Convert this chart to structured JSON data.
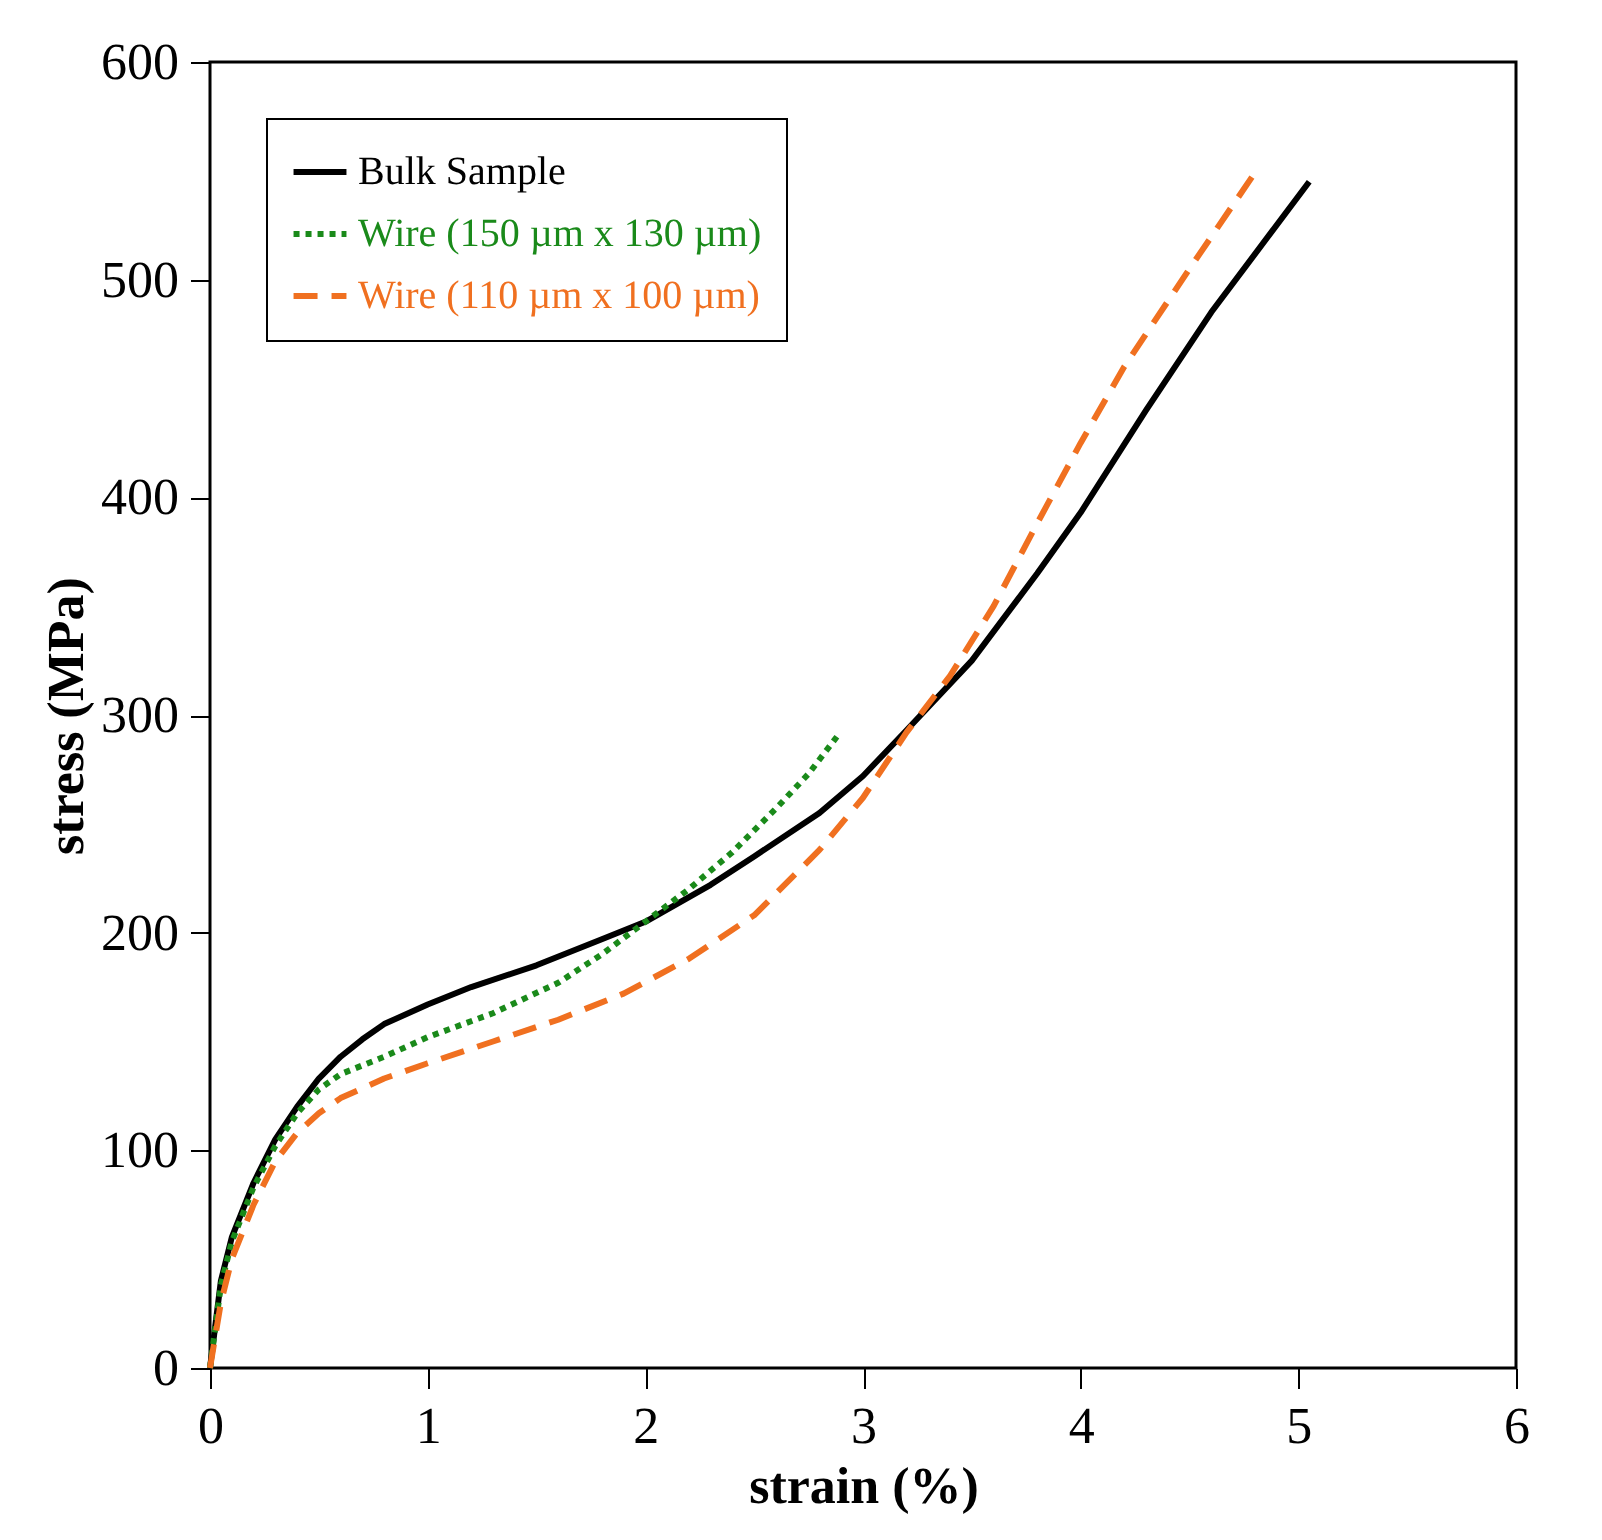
{
  "chart_data": {
    "type": "line",
    "xlabel": "strain (%)",
    "ylabel": "stress (MPa)",
    "xlim": [
      0,
      6
    ],
    "xticks": [
      0,
      1,
      2,
      3,
      4,
      5,
      6
    ],
    "ylim": [
      0,
      600
    ],
    "yticks": [
      0,
      100,
      200,
      300,
      400,
      500,
      600
    ],
    "grid": false,
    "legend": "top left",
    "series": [
      {
        "name": "Bulk Sample",
        "color": "#000000",
        "line_style": "solid",
        "x": [
          0,
          0.05,
          0.1,
          0.2,
          0.3,
          0.4,
          0.5,
          0.6,
          0.7,
          0.8,
          1.0,
          1.2,
          1.5,
          1.8,
          2.0,
          2.3,
          2.5,
          2.8,
          3.0,
          3.2,
          3.5,
          3.8,
          4.0,
          4.3,
          4.6,
          5.05
        ],
        "values": [
          0,
          40,
          60,
          85,
          105,
          120,
          133,
          143,
          151,
          158,
          167,
          175,
          185,
          197,
          205,
          222,
          235,
          255,
          272,
          293,
          325,
          365,
          393,
          440,
          485,
          545
        ]
      },
      {
        "name": "Wire (150 µm x 130 µm)",
        "color": "#1a8a1a",
        "line_style": "dotted",
        "x": [
          0,
          0.05,
          0.1,
          0.2,
          0.3,
          0.4,
          0.5,
          0.6,
          0.8,
          1.0,
          1.3,
          1.6,
          1.8,
          2.0,
          2.2,
          2.4,
          2.6,
          2.75,
          2.88
        ],
        "values": [
          0,
          38,
          58,
          83,
          102,
          117,
          128,
          135,
          143,
          152,
          163,
          177,
          190,
          205,
          220,
          237,
          257,
          273,
          290
        ]
      },
      {
        "name": "Wire (110 µm x 100 µm)",
        "color": "#f07020",
        "line_style": "dashed",
        "x": [
          0,
          0.05,
          0.1,
          0.2,
          0.3,
          0.4,
          0.5,
          0.6,
          0.8,
          1.0,
          1.3,
          1.6,
          1.9,
          2.2,
          2.5,
          2.8,
          3.0,
          3.2,
          3.4,
          3.6,
          3.8,
          4.0,
          4.2,
          4.5,
          4.82
        ],
        "values": [
          0,
          30,
          50,
          75,
          95,
          108,
          117,
          124,
          133,
          140,
          150,
          160,
          172,
          188,
          208,
          238,
          262,
          292,
          318,
          350,
          388,
          425,
          460,
          505,
          552
        ]
      }
    ]
  }
}
